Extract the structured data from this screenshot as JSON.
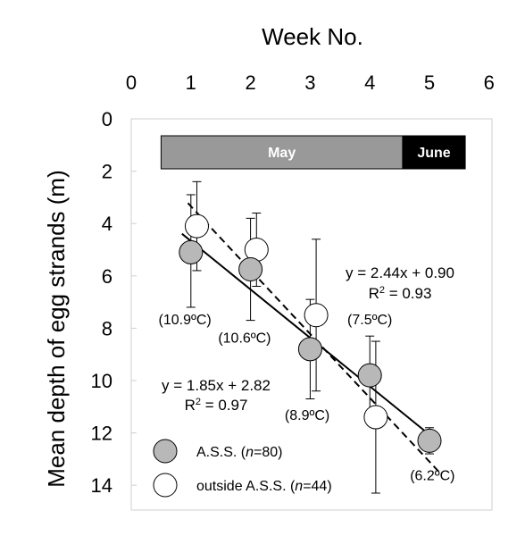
{
  "chart_data": {
    "type": "scatter",
    "xlabel": "Week No.",
    "ylabel": "Mean depth of egg strands (m)",
    "x_ticks": [
      "0",
      "1",
      "2",
      "3",
      "4",
      "5",
      "6"
    ],
    "y_ticks": [
      "0",
      "2",
      "4",
      "6",
      "8",
      "10",
      "12",
      "14"
    ],
    "xlim": [
      0,
      6
    ],
    "ylim": [
      0,
      15
    ],
    "y_inverted": true,
    "x_axis_position": "top",
    "legend_position": "bottom-left",
    "month_bar": [
      {
        "label": "May",
        "x_start": 0.5,
        "x_end": 4.55,
        "color": "#999999",
        "text_color": "#ffffff"
      },
      {
        "label": "June",
        "x_start": 4.55,
        "x_end": 5.6,
        "color": "#000000",
        "text_color": "#ffffff"
      }
    ],
    "series": [
      {
        "name": "A.S.S. (n=80)",
        "legend_prefix": "A.S.S. (",
        "legend_n": "n",
        "legend_suffix": "=80)",
        "marker_fill": "#b8b8b8",
        "line_style": "solid",
        "points": [
          {
            "x": 1.0,
            "y": 5.1,
            "err_low": 2.9,
            "err_high": 7.2
          },
          {
            "x": 2.0,
            "y": 5.75,
            "err_low": 3.8,
            "err_high": 7.7
          },
          {
            "x": 3.0,
            "y": 8.8,
            "err_low": 6.9,
            "err_high": 10.7
          },
          {
            "x": 4.0,
            "y": 9.8,
            "err_low": 8.3,
            "err_high": 11.3
          },
          {
            "x": 5.0,
            "y": 12.3,
            "err_low": 11.8,
            "err_high": 12.8
          }
        ],
        "fit": {
          "slope": 1.85,
          "intercept": 2.82,
          "x_range": [
            0.85,
            5.15
          ]
        },
        "equation": "y = 1.85x + 2.82",
        "r2_prefix": "R",
        "r2_value": " = 0.97"
      },
      {
        "name": "outside A.S.S. (n=44)",
        "legend_prefix": "outside A.S.S. (",
        "legend_n": "n",
        "legend_suffix": "=44)",
        "marker_fill": "#ffffff",
        "line_style": "dashed",
        "points": [
          {
            "x": 1.1,
            "y": 4.1,
            "err_low": 2.4,
            "err_high": 5.8
          },
          {
            "x": 2.1,
            "y": 5.0,
            "err_low": 3.6,
            "err_high": 6.4
          },
          {
            "x": 3.1,
            "y": 7.5,
            "err_low": 4.6,
            "err_high": 10.4
          },
          {
            "x": 4.1,
            "y": 11.4,
            "err_low": 8.5,
            "err_high": 14.3
          }
        ],
        "fit": {
          "slope": 2.44,
          "intercept": 0.9,
          "x_range": [
            0.95,
            5.15
          ]
        },
        "equation": "y = 2.44x + 0.90",
        "r2_prefix": "R",
        "r2_value": " = 0.93"
      }
    ],
    "temperatures": [
      {
        "label": "(10.9ºC)",
        "x": 0.9,
        "y": 7.85
      },
      {
        "label": "(10.6ºC)",
        "x": 1.9,
        "y": 8.55
      },
      {
        "label": "(8.9ºC)",
        "x": 2.95,
        "y": 11.5
      },
      {
        "label": "(7.5ºC)",
        "x": 4.0,
        "y": 7.85
      },
      {
        "label": "(6.2ºC)",
        "x": 5.05,
        "y": 13.8
      }
    ]
  }
}
